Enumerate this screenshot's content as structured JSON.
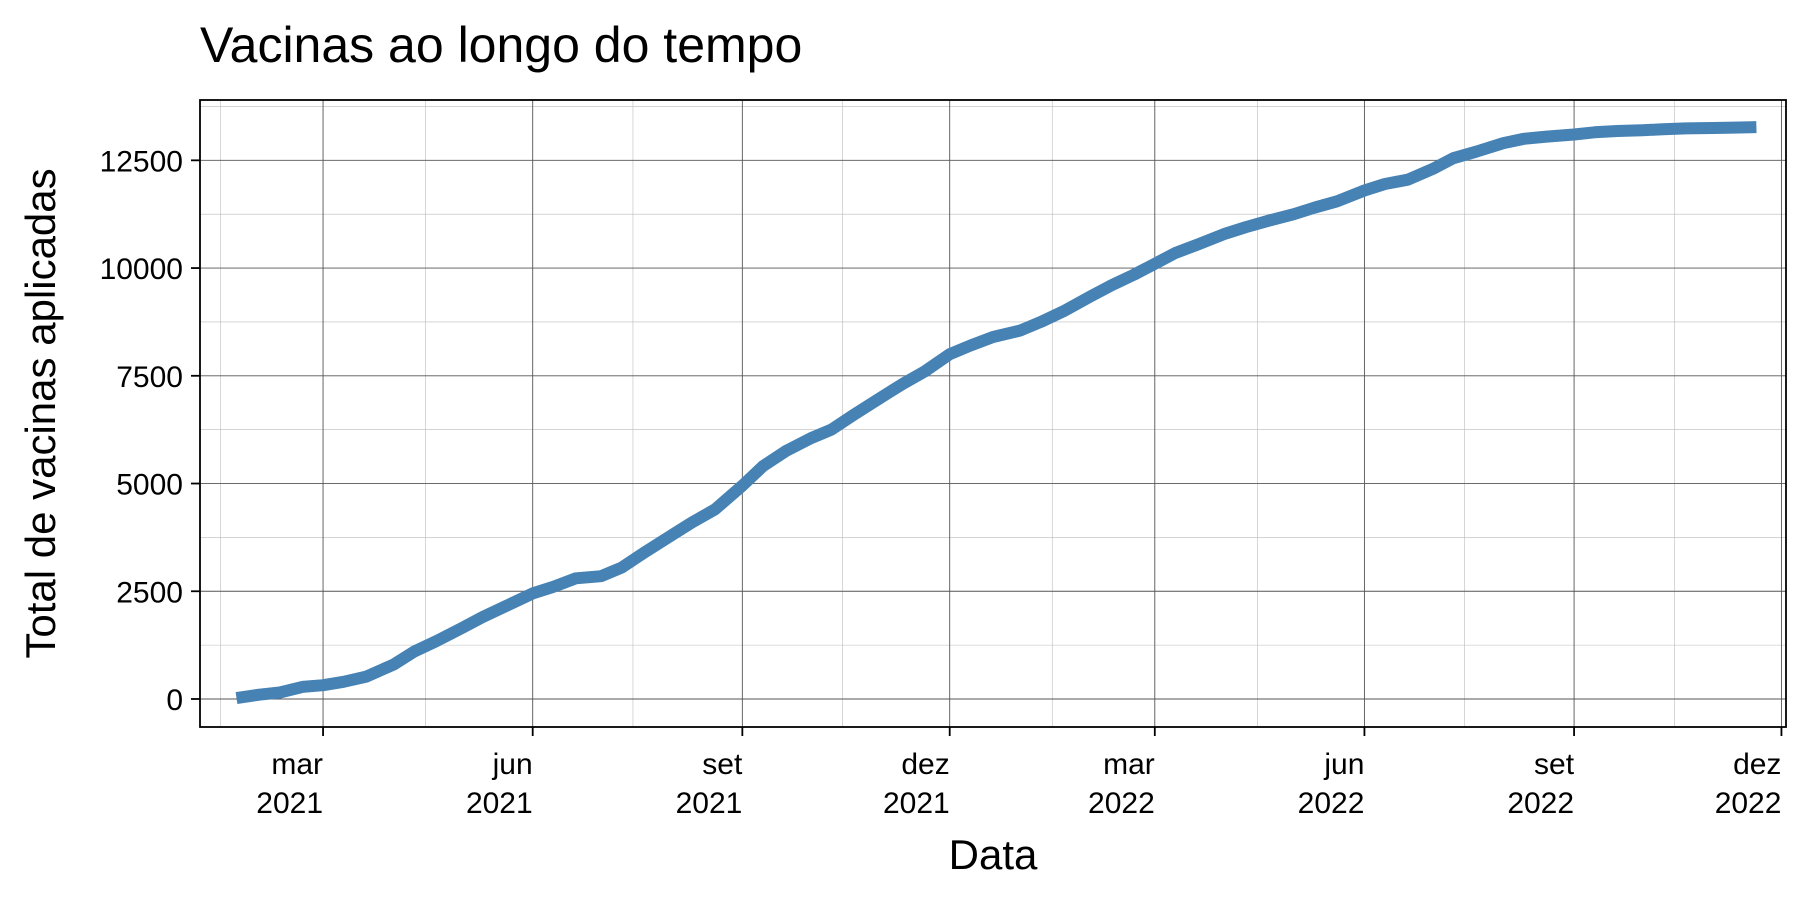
{
  "chart_data": {
    "type": "line",
    "title": "Vacinas ao longo do tempo",
    "xlabel": "Data",
    "ylabel": "Total de vacinas aplicadas",
    "xlim": [
      "2021-01-06",
      "2022-12-03"
    ],
    "ylim": [
      -650,
      13900
    ],
    "grid": true,
    "legend": "none",
    "line_color": "#4682B4",
    "y_ticks": [
      0,
      2500,
      5000,
      7500,
      10000,
      12500
    ],
    "y_tick_labels": [
      "0",
      "2500",
      "5000",
      "7500",
      "10000",
      "12500"
    ],
    "y_minor_ticks": [
      1250,
      3750,
      6250,
      8750,
      11250,
      13750
    ],
    "x_ticks": [
      "2021-03-01",
      "2021-06-01",
      "2021-09-01",
      "2021-12-01",
      "2022-03-01",
      "2022-06-01",
      "2022-09-01",
      "2022-12-01"
    ],
    "x_tick_labels": [
      {
        "month": "mar",
        "year": "2021"
      },
      {
        "month": "jun",
        "year": "2021"
      },
      {
        "month": "set",
        "year": "2021"
      },
      {
        "month": "dez",
        "year": "2021"
      },
      {
        "month": "mar",
        "year": "2022"
      },
      {
        "month": "jun",
        "year": "2022"
      },
      {
        "month": "set",
        "year": "2022"
      },
      {
        "month": "dez",
        "year": "2022"
      }
    ],
    "x_minor_ticks": [
      "2021-01-15",
      "2021-04-15",
      "2021-07-15",
      "2021-10-15",
      "2022-01-15",
      "2022-04-15",
      "2022-07-15",
      "2022-10-15"
    ],
    "series": [
      {
        "x": [
          "2021-01-22",
          "2021-02-01",
          "2021-02-10",
          "2021-02-20",
          "2021-03-01",
          "2021-03-10",
          "2021-03-20",
          "2021-04-01",
          "2021-04-10",
          "2021-04-20",
          "2021-05-01",
          "2021-05-10",
          "2021-05-20",
          "2021-06-01",
          "2021-06-10",
          "2021-06-20",
          "2021-07-01",
          "2021-07-10",
          "2021-07-20",
          "2021-08-01",
          "2021-08-10",
          "2021-08-20",
          "2021-09-01",
          "2021-09-10",
          "2021-09-20",
          "2021-10-01",
          "2021-10-10",
          "2021-10-20",
          "2021-11-01",
          "2021-11-10",
          "2021-11-20",
          "2021-12-01",
          "2021-12-10",
          "2021-12-20",
          "2022-01-01",
          "2022-01-10",
          "2022-01-20",
          "2022-02-01",
          "2022-02-10",
          "2022-02-20",
          "2022-03-01",
          "2022-03-10",
          "2022-03-20",
          "2022-04-01",
          "2022-04-10",
          "2022-04-20",
          "2022-05-01",
          "2022-05-10",
          "2022-05-20",
          "2022-06-01",
          "2022-06-10",
          "2022-06-20",
          "2022-07-01",
          "2022-07-10",
          "2022-07-20",
          "2022-08-01",
          "2022-08-10",
          "2022-08-20",
          "2022-09-01",
          "2022-09-10",
          "2022-09-20",
          "2022-10-01",
          "2022-10-10",
          "2022-10-20",
          "2022-11-01",
          "2022-11-10",
          "2022-11-20"
        ],
        "y": [
          20,
          100,
          150,
          280,
          320,
          400,
          520,
          800,
          1100,
          1350,
          1650,
          1900,
          2150,
          2450,
          2600,
          2800,
          2850,
          3050,
          3400,
          3800,
          4100,
          4400,
          4950,
          5400,
          5750,
          6050,
          6250,
          6600,
          7000,
          7300,
          7600,
          8000,
          8200,
          8400,
          8550,
          8750,
          9000,
          9350,
          9600,
          9850,
          10100,
          10350,
          10550,
          10800,
          10950,
          11100,
          11250,
          11400,
          11550,
          11800,
          11950,
          12050,
          12300,
          12550,
          12700,
          12900,
          13000,
          13050,
          13100,
          13150,
          13180,
          13200,
          13220,
          13240,
          13250,
          13260,
          13270
        ]
      }
    ]
  }
}
